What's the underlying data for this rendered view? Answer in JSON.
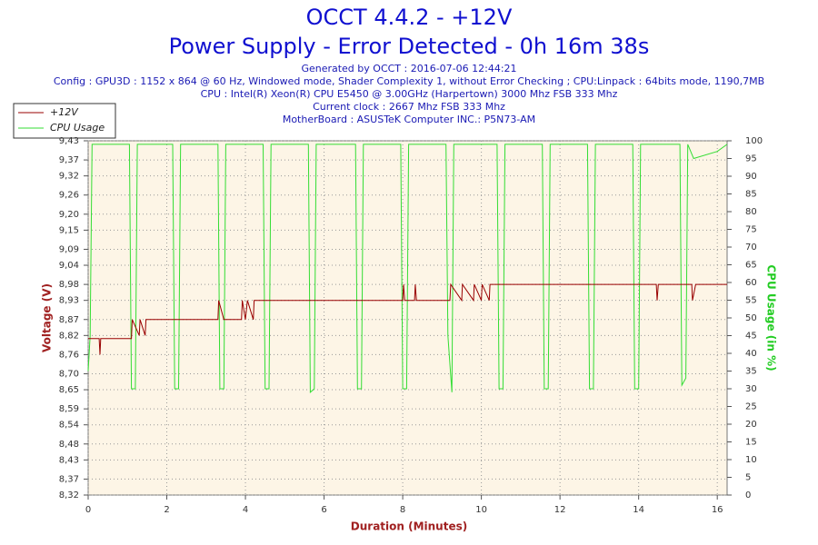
{
  "chart_data": {
    "type": "line",
    "title": "OCCT 4.4.2 - +12V",
    "subtitle": "Power Supply - Error Detected - 0h 16m 38s",
    "info": [
      "Generated by OCCT : 2016-07-06 12:44:21",
      "Config : GPU3D : 1152 x 864 @ 60 Hz, Windowed mode, Shader Complexity 1, without Error Checking ; CPU:Linpack : 64bits mode, 1190,7MB",
      "CPU : Intel(R) Xeon(R) CPU E5450 @ 3.00GHz (Harpertown) 3000 Mhz FSB 333 Mhz",
      "Current clock : 2667 Mhz FSB 333 Mhz",
      "MotherBoard : ASUSTeK Computer INC.: P5N73-AM"
    ],
    "x_label": "Duration (Minutes)",
    "y_label": "Voltage (V)",
    "y2_label": "CPU Usage (in %)",
    "xlim": [
      0,
      16.25
    ],
    "xticks": [
      0,
      2,
      4,
      6,
      8,
      10,
      12,
      14,
      16
    ],
    "ylim": [
      8.32,
      9.43
    ],
    "yticks": [
      {
        "value": 8.32,
        "label": "8,32"
      },
      {
        "value": 8.37,
        "label": "8,37"
      },
      {
        "value": 8.43,
        "label": "8,43"
      },
      {
        "value": 8.48,
        "label": "8,48"
      },
      {
        "value": 8.54,
        "label": "8,54"
      },
      {
        "value": 8.59,
        "label": "8,59"
      },
      {
        "value": 8.65,
        "label": "8,65"
      },
      {
        "value": 8.7,
        "label": "8,70"
      },
      {
        "value": 8.76,
        "label": "8,76"
      },
      {
        "value": 8.82,
        "label": "8,82"
      },
      {
        "value": 8.87,
        "label": "8,87"
      },
      {
        "value": 8.93,
        "label": "8,93"
      },
      {
        "value": 8.98,
        "label": "8,98"
      },
      {
        "value": 9.04,
        "label": "9,04"
      },
      {
        "value": 9.09,
        "label": "9,09"
      },
      {
        "value": 9.15,
        "label": "9,15"
      },
      {
        "value": 9.2,
        "label": "9,20"
      },
      {
        "value": 9.26,
        "label": "9,26"
      },
      {
        "value": 9.32,
        "label": "9,32"
      },
      {
        "value": 9.37,
        "label": "9,37"
      },
      {
        "value": 9.43,
        "label": "9,43"
      }
    ],
    "y2lim": [
      0,
      100
    ],
    "y2ticks": [
      0,
      5,
      10,
      15,
      20,
      25,
      30,
      35,
      40,
      45,
      50,
      55,
      60,
      65,
      70,
      75,
      80,
      85,
      90,
      95,
      100
    ],
    "grid": true,
    "legend": "top-left",
    "series": [
      {
        "name": "+12V",
        "color": "#990000",
        "x": [
          0,
          0.28,
          0.3,
          0.32,
          1.1,
          1.12,
          1.3,
          1.32,
          1.45,
          1.47,
          3.3,
          3.32,
          3.45,
          3.5,
          3.9,
          3.92,
          4.0,
          4.05,
          4.2,
          4.22,
          8.0,
          8.02,
          8.05,
          8.3,
          8.32,
          8.35,
          9.2,
          9.22,
          9.5,
          9.52,
          9.8,
          9.82,
          10.0,
          10.02,
          10.2,
          10.22,
          14.45,
          14.47,
          14.5,
          15.35,
          15.37,
          15.45,
          16.25
        ],
        "values": [
          8.81,
          8.81,
          8.76,
          8.81,
          8.81,
          8.87,
          8.82,
          8.87,
          8.82,
          8.87,
          8.87,
          8.93,
          8.87,
          8.87,
          8.87,
          8.93,
          8.87,
          8.93,
          8.87,
          8.93,
          8.93,
          8.98,
          8.93,
          8.93,
          8.98,
          8.93,
          8.93,
          8.98,
          8.93,
          8.98,
          8.93,
          8.98,
          8.93,
          8.98,
          8.93,
          8.98,
          8.98,
          8.93,
          8.98,
          8.98,
          8.93,
          8.98,
          8.98
        ]
      },
      {
        "name": "CPU Usage",
        "color": "#33dd33",
        "axis": "y2",
        "x": [
          0,
          0.05,
          0.1,
          1.05,
          1.1,
          1.2,
          1.25,
          2.15,
          2.2,
          2.3,
          2.35,
          3.3,
          3.35,
          3.45,
          3.5,
          4.45,
          4.5,
          4.6,
          4.65,
          5.6,
          5.65,
          5.75,
          5.8,
          6.8,
          6.85,
          6.95,
          7.0,
          7.95,
          8.0,
          8.1,
          8.15,
          9.1,
          9.15,
          9.25,
          9.3,
          10.4,
          10.45,
          10.55,
          10.6,
          11.55,
          11.6,
          11.7,
          11.75,
          12.7,
          12.75,
          12.85,
          12.9,
          13.85,
          13.9,
          14.0,
          14.05,
          15.05,
          15.1,
          15.2,
          15.25,
          15.4,
          16.0,
          16.25
        ],
        "values": [
          35,
          45,
          99,
          99,
          30,
          30,
          99,
          99,
          30,
          30,
          99,
          99,
          30,
          30,
          99,
          99,
          30,
          30,
          99,
          99,
          29,
          30,
          99,
          99,
          30,
          30,
          99,
          99,
          30,
          30,
          99,
          99,
          45,
          29,
          99,
          99,
          30,
          30,
          99,
          99,
          30,
          30,
          99,
          99,
          30,
          30,
          99,
          99,
          30,
          30,
          99,
          99,
          31,
          33,
          99,
          95,
          97,
          99
        ]
      }
    ]
  }
}
